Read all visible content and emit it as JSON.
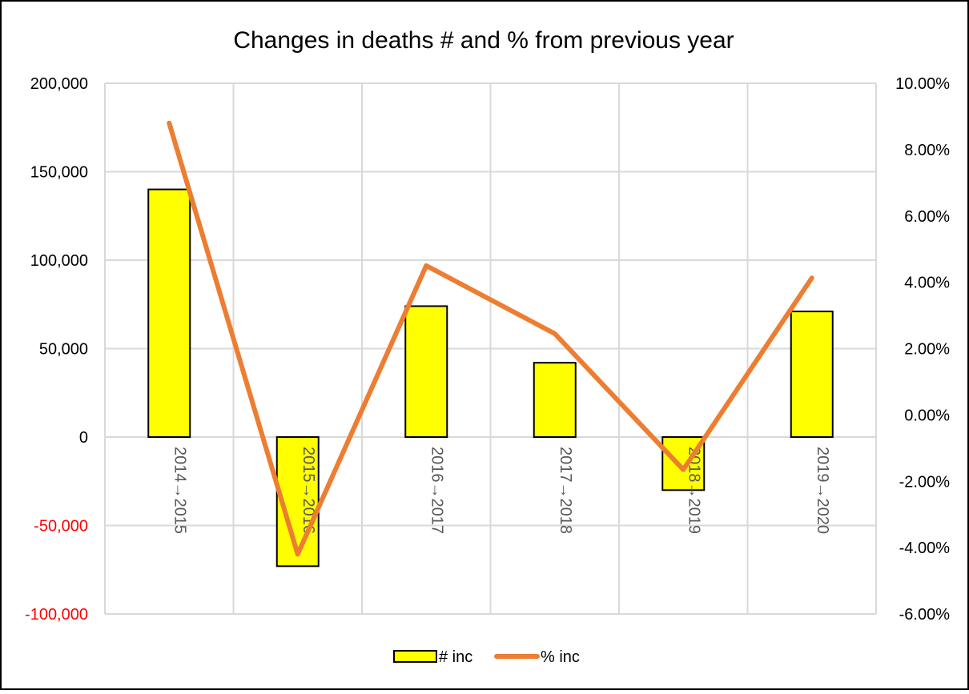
{
  "chart_data": {
    "type": "bar",
    "title": "Changes in deaths # and % from previous year",
    "xlabel": "",
    "ylabel": "",
    "categories": [
      "2014→2015",
      "2015→2016",
      "2016→2017",
      "2017→2018",
      "2018→2019",
      "2019→2020"
    ],
    "series": [
      {
        "name": "# inc",
        "type": "bar",
        "axis": "left",
        "values": [
          140000,
          -73000,
          74000,
          42000,
          -30000,
          71000
        ],
        "color": "#ffff00",
        "edge_color": "#000000"
      },
      {
        "name": "% inc",
        "type": "line",
        "axis": "right",
        "values": [
          0.088,
          -0.042,
          0.045,
          0.0245,
          -0.0165,
          0.0413
        ],
        "color": "#ed7d31"
      }
    ],
    "ylim": [
      -100000,
      200000
    ],
    "yticks": [
      200000,
      150000,
      100000,
      50000,
      0,
      -50000,
      -100000
    ],
    "ytick_labels": [
      "200,000",
      "150,000",
      "100,000",
      "50,000",
      "0",
      "-50,000",
      "-100,000"
    ],
    "negative_label_color": "#ff0000",
    "y2lim": [
      -0.06,
      0.1
    ],
    "y2ticks": [
      0.1,
      0.08,
      0.06,
      0.04,
      0.02,
      0.0,
      -0.02,
      -0.04,
      -0.06
    ],
    "y2tick_labels": [
      "10.00%",
      "8.00%",
      "6.00%",
      "4.00%",
      "2.00%",
      "0.00%",
      "-2.00%",
      "-4.00%",
      "-6.00%"
    ],
    "grid": true,
    "legend": "bottom",
    "legend_labels": [
      "# inc",
      "% inc"
    ]
  }
}
